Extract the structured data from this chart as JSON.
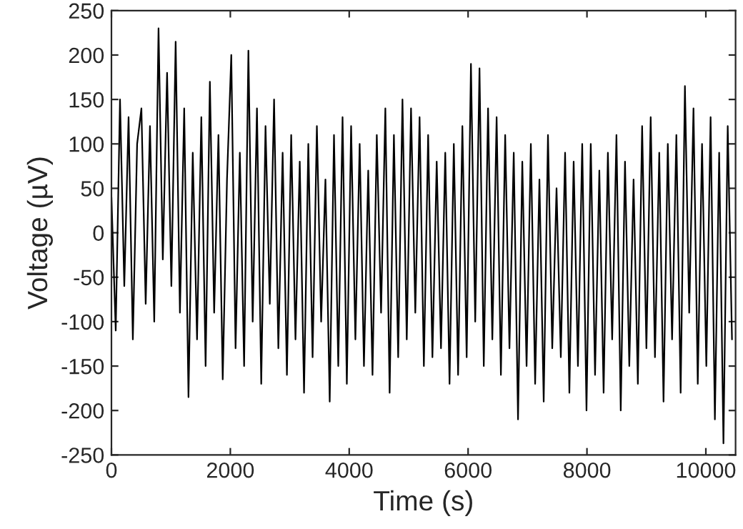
{
  "chart_data": {
    "type": "line",
    "xlabel": "Time (s)",
    "ylabel": "Voltage (µV)",
    "x": [
      0,
      72,
      144,
      216,
      288,
      360,
      432,
      504,
      576,
      648,
      720,
      792,
      864,
      936,
      1008,
      1080,
      1152,
      1224,
      1296,
      1368,
      1440,
      1512,
      1584,
      1656,
      1728,
      1800,
      1872,
      1944,
      2016,
      2088,
      2160,
      2232,
      2304,
      2376,
      2448,
      2520,
      2592,
      2664,
      2736,
      2808,
      2880,
      2952,
      3024,
      3096,
      3168,
      3240,
      3312,
      3384,
      3456,
      3528,
      3600,
      3672,
      3744,
      3816,
      3888,
      3960,
      4032,
      4104,
      4176,
      4248,
      4320,
      4392,
      4464,
      4536,
      4608,
      4680,
      4752,
      4824,
      4896,
      4968,
      5040,
      5112,
      5184,
      5256,
      5328,
      5400,
      5472,
      5544,
      5616,
      5688,
      5760,
      5832,
      5904,
      5976,
      6048,
      6120,
      6192,
      6264,
      6336,
      6408,
      6480,
      6552,
      6624,
      6696,
      6768,
      6840,
      6912,
      6984,
      7056,
      7128,
      7200,
      7272,
      7344,
      7416,
      7488,
      7560,
      7632,
      7704,
      7776,
      7848,
      7920,
      7992,
      8064,
      8136,
      8208,
      8280,
      8352,
      8424,
      8496,
      8568,
      8640,
      8712,
      8784,
      8856,
      8928,
      9000,
      9072,
      9144,
      9216,
      9288,
      9360,
      9432,
      9504,
      9576,
      9648,
      9720,
      9792,
      9864,
      9936,
      10008,
      10080,
      10152,
      10224,
      10296,
      10368,
      10440
    ],
    "series": [
      {
        "color": "#000000",
        "values": [
          40,
          -110,
          150,
          -60,
          130,
          -120,
          100,
          140,
          -80,
          120,
          -100,
          230,
          -30,
          180,
          -60,
          215,
          -90,
          140,
          -185,
          90,
          -120,
          130,
          -150,
          170,
          -90,
          110,
          -165,
          60,
          200,
          -130,
          90,
          -150,
          205,
          -100,
          140,
          -170,
          120,
          -80,
          150,
          -130,
          90,
          -160,
          110,
          -120,
          80,
          -180,
          100,
          -140,
          120,
          -100,
          60,
          -190,
          110,
          -150,
          130,
          -170,
          120,
          -120,
          100,
          -150,
          70,
          -160,
          110,
          -90,
          140,
          -180,
          110,
          -140,
          150,
          -120,
          140,
          -90,
          130,
          -150,
          110,
          -140,
          80,
          -130,
          90,
          -170,
          100,
          -160,
          120,
          -140,
          190,
          -100,
          185,
          -150,
          140,
          -120,
          130,
          -160,
          110,
          -130,
          90,
          -210,
          80,
          -150,
          100,
          -170,
          60,
          -190,
          110,
          -130,
          50,
          -140,
          90,
          -180,
          80,
          -150,
          100,
          -200,
          100,
          -160,
          70,
          -180,
          90,
          -120,
          110,
          -200,
          80,
          -150,
          60,
          -170,
          120,
          -130,
          130,
          -140,
          90,
          -190,
          100,
          -120,
          110,
          -180,
          165,
          -90,
          140,
          -170,
          100,
          -150,
          130,
          -210,
          90,
          -237,
          120,
          -120
        ]
      }
    ],
    "xlim": [
      0,
      10500
    ],
    "ylim": [
      -250,
      250
    ],
    "xticks": [
      0,
      2000,
      4000,
      6000,
      8000,
      10000
    ],
    "yticks": [
      -250,
      -200,
      -150,
      -100,
      -50,
      0,
      50,
      100,
      150,
      200,
      250
    ]
  }
}
